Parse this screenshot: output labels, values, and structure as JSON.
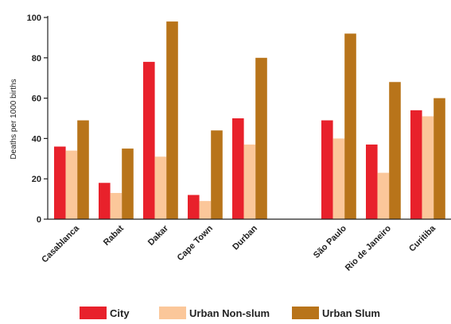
{
  "chart_data": {
    "type": "bar",
    "title": "",
    "ylabel": "Deaths per 1000 births",
    "xlabel": "",
    "ylim": [
      0,
      100
    ],
    "yticks": [
      0,
      20,
      40,
      60,
      80,
      100
    ],
    "grid": false,
    "legend_position": "bottom",
    "categories": [
      "Casablanca",
      "Rabat",
      "Dakar",
      "Cape Town",
      "Durban",
      "São Paulo",
      "Rio de Janeiro",
      "Curitiba"
    ],
    "series": [
      {
        "name": "City",
        "color": "#e8212b",
        "values": [
          36,
          18,
          78,
          12,
          50,
          49,
          37,
          54
        ]
      },
      {
        "name": "Urban Non-slum",
        "color": "#fbc79a",
        "values": [
          34,
          13,
          31,
          9,
          37,
          40,
          23,
          51
        ]
      },
      {
        "name": "Urban Slum",
        "color": "#b8741a",
        "values": [
          49,
          35,
          98,
          44,
          80,
          92,
          68,
          60
        ]
      }
    ]
  }
}
